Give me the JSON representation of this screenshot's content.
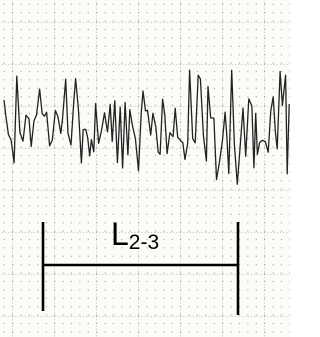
{
  "label": {
    "main": "L",
    "subscript": "2-3"
  }
}
